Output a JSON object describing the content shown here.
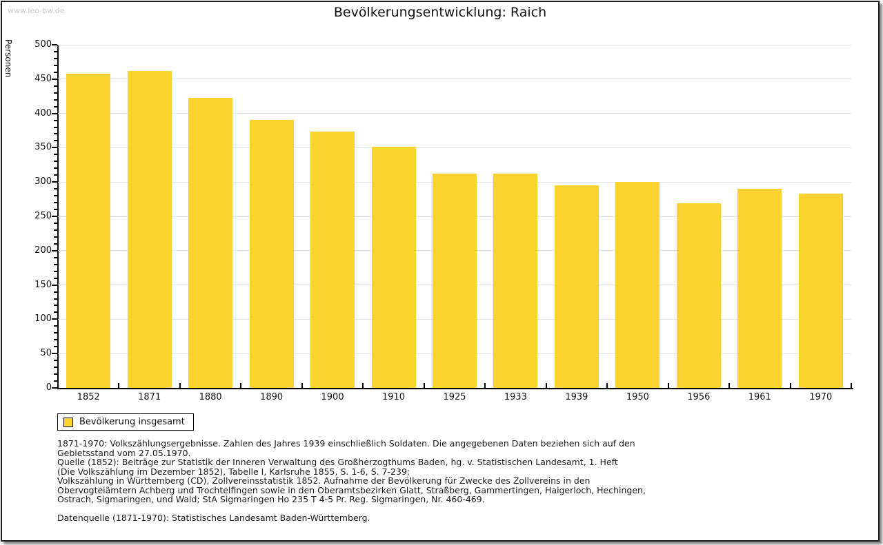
{
  "watermark": "www.leo-bw.de",
  "title": "Bevölkerungsentwicklung: Raich",
  "chart_data": {
    "type": "bar",
    "title": "Bevölkerungsentwicklung: Raich",
    "ylabel": "Personen",
    "xlabel": "",
    "ylim": [
      0,
      500
    ],
    "ytick_major": 50,
    "ytick_minor": 10,
    "grid": true,
    "legend_position": "bottom-left",
    "categories": [
      "1852",
      "1871",
      "1880",
      "1890",
      "1900",
      "1910",
      "1925",
      "1933",
      "1939",
      "1950",
      "1956",
      "1961",
      "1970"
    ],
    "values": [
      458,
      462,
      423,
      391,
      374,
      351,
      312,
      312,
      295,
      300,
      269,
      290,
      283
    ],
    "series_name": "Bevölkerung insgesamt"
  },
  "colors": {
    "bar": "#fcd32e",
    "gridline": "#e2e2e2",
    "axis": "#000000",
    "watermark": "#c9c9c9"
  },
  "legend": {
    "label": "Bevölkerung insgesamt",
    "swatch_color": "#fcd32e"
  },
  "footer": {
    "paragraphs": [
      [
        "1871-1970: Volkszählungsergebnisse. Zahlen des Jahres 1939 einschließlich Soldaten. Die angegebenen Daten beziehen sich auf den",
        "Gebietsstand vom 27.05.1970.",
        "Quelle (1852): Beiträge zur Statistik der Inneren Verwaltung des Großherzogthums Baden, hg. v. Statistischen Landesamt, 1. Heft",
        "(Die Volkszählung im Dezember 1852), Tabelle I, Karlsruhe 1855, S. 1-6, S. 7-239;",
        "Volkszählung in Württemberg (CD), Zollvereinsstatistik 1852. Aufnahme der Bevölkerung für Zwecke des Zollvereins in den",
        "Obervogteiämtern Achberg und Trochtelfingen sowie in den Oberamtsbezirken Glatt, Straßberg, Gammertingen, Haigerloch, Hechingen,",
        "Ostrach, Sigmaringen, und Wald; StA Sigmaringen Ho 235 T 4-5 Pr. Reg. Sigmaringen, Nr. 460-469."
      ],
      [
        "Datenquelle (1871-1970): Statistisches Landesamt Baden-Württemberg."
      ]
    ]
  }
}
